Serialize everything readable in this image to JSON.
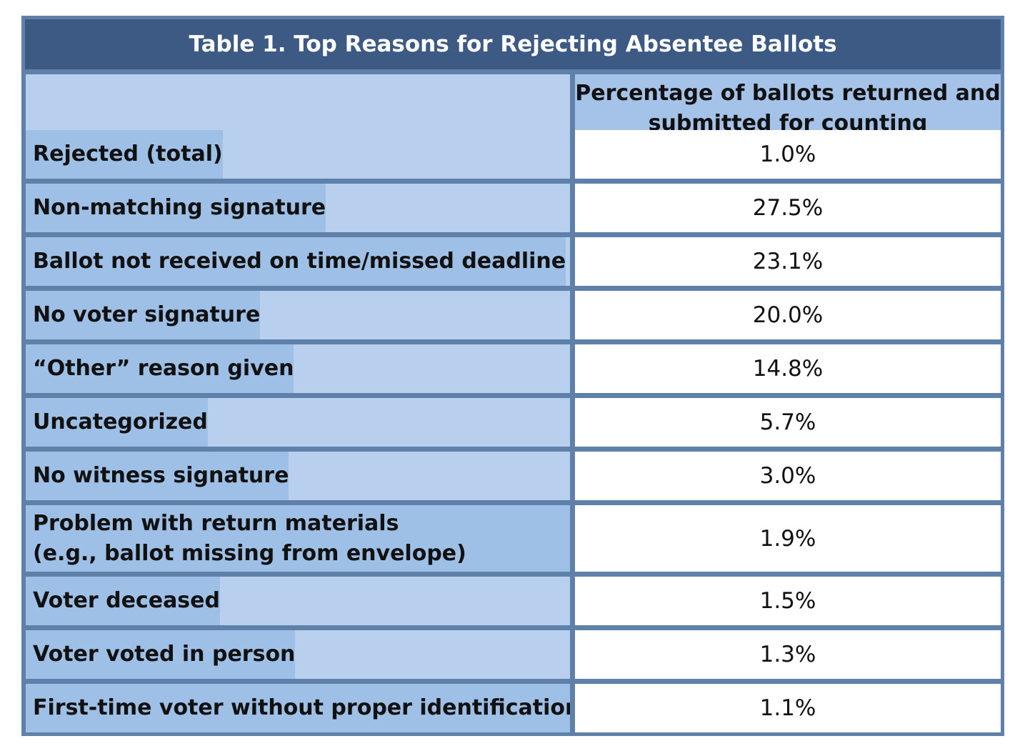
{
  "title": "Table 1. Top Reasons for Rejecting Absentee Ballots",
  "header": {
    "left": "",
    "right_line1": "Percentage of ballots returned and",
    "right_line2": "submitted for counting"
  },
  "colors": {
    "title_bg": "#3c5a84",
    "border": "#5f80a8",
    "label_bg_light": "#b9cfee",
    "label_bg_dark": "#9ebfe6",
    "value_bg": "#ffffff"
  },
  "chart_data": {
    "type": "table",
    "title": "Table 1. Top Reasons for Rejecting Absentee Ballots",
    "columns": [
      "",
      "Percentage of ballots returned and submitted for counting"
    ],
    "rows": [
      {
        "label": "Rejected (total)",
        "label2": "",
        "value": 1.0,
        "display": "1.0%"
      },
      {
        "label": "Non-matching signature",
        "label2": "",
        "value": 27.5,
        "display": "27.5%"
      },
      {
        "label": "Ballot not received on time/missed deadline",
        "label2": "",
        "value": 23.1,
        "display": "23.1%"
      },
      {
        "label": "No voter signature",
        "label2": "",
        "value": 20.0,
        "display": "20.0%"
      },
      {
        "label": "“Other” reason given",
        "label2": "",
        "value": 14.8,
        "display": "14.8%"
      },
      {
        "label": "Uncategorized",
        "label2": "",
        "value": 5.7,
        "display": "5.7%"
      },
      {
        "label": "No witness signature",
        "label2": "",
        "value": 3.0,
        "display": "3.0%"
      },
      {
        "label": "Problem with return materials",
        "label2": "(e.g., ballot missing from envelope)",
        "value": 1.9,
        "display": "1.9%"
      },
      {
        "label": "Voter deceased",
        "label2": "",
        "value": 1.5,
        "display": "1.5%"
      },
      {
        "label": "Voter voted in person",
        "label2": "",
        "value": 1.3,
        "display": "1.3%"
      },
      {
        "label": "First-time voter without proper identification",
        "label2": "",
        "value": 1.1,
        "display": "1.1%"
      }
    ]
  }
}
